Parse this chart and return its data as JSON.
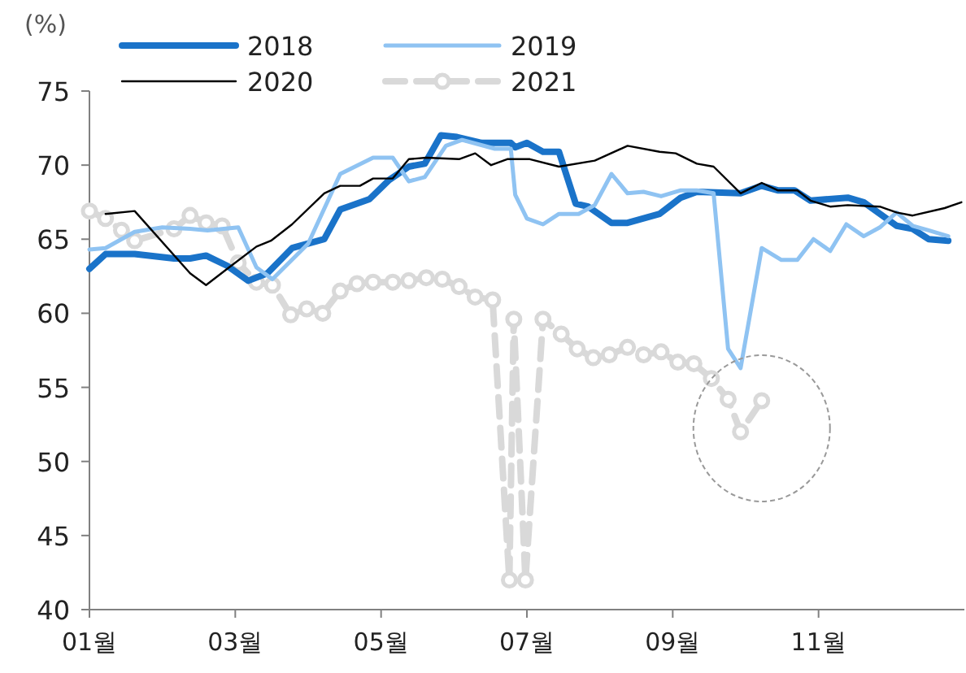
{
  "chart_data": {
    "type": "line",
    "ylabel": "(%)",
    "xlim": [
      1,
      13
    ],
    "ylim": [
      40,
      75
    ],
    "yticks": [
      40,
      45,
      50,
      55,
      60,
      65,
      70,
      75
    ],
    "xticks": [
      {
        "value": 1,
        "label": "01월"
      },
      {
        "value": 3,
        "label": "03월"
      },
      {
        "value": 5,
        "label": "05월"
      },
      {
        "value": 7,
        "label": "07월"
      },
      {
        "value": 9,
        "label": "09월"
      },
      {
        "value": 11,
        "label": "11월"
      }
    ],
    "grid": false,
    "legend": "top",
    "series": [
      {
        "name": "2018",
        "color": "#1a73c9",
        "line_style": "solid",
        "marker": "none",
        "x": [
          1,
          1.22,
          1.62,
          2.16,
          2.38,
          2.6,
          2.89,
          3.18,
          3.44,
          3.78,
          4.22,
          4.44,
          4.84,
          5.11,
          5.38,
          5.6,
          5.82,
          6.04,
          6.38,
          6.78,
          6.84,
          7.0,
          7.22,
          7.44,
          7.67,
          7.84,
          8.16,
          8.38,
          8.82,
          9.11,
          9.33,
          9.93,
          10.22,
          10.44,
          10.67,
          10.89,
          11.4,
          11.62,
          12.07,
          12.29,
          12.51,
          12.78
        ],
        "values": [
          63.0,
          64.0,
          64.0,
          63.7,
          63.7,
          63.9,
          63.2,
          62.2,
          62.7,
          64.4,
          65.0,
          67.0,
          67.7,
          69.0,
          69.9,
          70.1,
          72.0,
          71.9,
          71.5,
          71.5,
          71.2,
          71.5,
          70.9,
          70.9,
          67.4,
          67.2,
          66.1,
          66.1,
          66.7,
          67.8,
          68.2,
          68.1,
          68.6,
          68.3,
          68.3,
          67.6,
          67.8,
          67.5,
          65.9,
          65.7,
          65.0,
          64.9
        ]
      },
      {
        "name": "2019",
        "color": "#8fc3f2",
        "line_style": "solid",
        "marker": "none",
        "x": [
          1,
          1.22,
          1.62,
          2.0,
          2.38,
          2.62,
          3.04,
          3.29,
          3.51,
          4.0,
          4.44,
          4.89,
          5.16,
          5.38,
          5.6,
          5.89,
          6.11,
          6.56,
          6.78,
          6.84,
          7.0,
          7.22,
          7.44,
          7.71,
          7.93,
          8.16,
          8.38,
          8.6,
          8.84,
          9.11,
          9.33,
          9.56,
          9.76,
          9.93,
          10.22,
          10.49,
          10.71,
          10.93,
          11.16,
          11.38,
          11.62,
          11.84,
          12.07,
          12.29,
          12.51,
          12.78
        ],
        "values": [
          64.3,
          64.4,
          65.5,
          65.8,
          65.7,
          65.6,
          65.8,
          63.1,
          62.3,
          64.7,
          69.4,
          70.5,
          70.5,
          68.9,
          69.2,
          71.3,
          71.7,
          71.1,
          71.1,
          68.0,
          66.4,
          66.0,
          66.7,
          66.7,
          67.3,
          69.4,
          68.1,
          68.2,
          67.9,
          68.3,
          68.3,
          68.1,
          57.6,
          56.3,
          64.4,
          63.6,
          63.6,
          65.0,
          64.2,
          66.0,
          65.2,
          65.8,
          66.8,
          65.9,
          65.6,
          65.2
        ]
      },
      {
        "name": "2020",
        "color": "#000000",
        "line_style": "solid",
        "marker": "none",
        "x": [
          1.22,
          1.62,
          2.38,
          2.6,
          2.89,
          3.29,
          3.49,
          3.78,
          4.22,
          4.44,
          4.71,
          4.89,
          5.16,
          5.38,
          5.62,
          6.07,
          6.29,
          6.51,
          6.73,
          7.04,
          7.44,
          7.93,
          8.38,
          8.82,
          9.04,
          9.33,
          9.56,
          9.93,
          10.22,
          10.44,
          10.71,
          10.89,
          11.16,
          11.4,
          11.84,
          12.07,
          12.29,
          12.73,
          12.96
        ],
        "values": [
          66.7,
          66.9,
          62.7,
          61.9,
          63.0,
          64.5,
          64.9,
          66.0,
          68.1,
          68.6,
          68.6,
          69.1,
          69.1,
          70.4,
          70.5,
          70.4,
          70.8,
          70.0,
          70.4,
          70.4,
          69.9,
          70.3,
          71.3,
          70.9,
          70.8,
          70.1,
          69.9,
          68.1,
          68.8,
          68.3,
          68.3,
          67.6,
          67.2,
          67.3,
          67.2,
          66.8,
          66.6,
          67.1,
          67.5
        ]
      },
      {
        "name": "2021",
        "color": "#d9d9d9",
        "line_style": "dashed",
        "marker": "circle",
        "x": [
          1,
          1.22,
          1.44,
          1.62,
          2.16,
          2.38,
          2.6,
          2.82,
          3.04,
          3.29,
          3.51,
          3.76,
          3.98,
          4.2,
          4.44,
          4.67,
          4.89,
          5.16,
          5.38,
          5.62,
          5.84,
          6.07,
          6.29,
          6.53,
          6.76,
          6.82,
          6.98,
          7.22,
          7.47,
          7.69,
          7.91,
          8.13,
          8.38,
          8.6,
          8.84,
          9.07,
          9.29,
          9.53,
          9.76,
          9.93,
          10.22
        ],
        "values": [
          66.9,
          66.4,
          65.6,
          64.9,
          65.7,
          66.6,
          66.1,
          65.9,
          63.4,
          62.1,
          61.9,
          59.9,
          60.3,
          60.0,
          61.5,
          62.0,
          62.1,
          62.1,
          62.2,
          62.4,
          62.3,
          61.8,
          61.1,
          60.9,
          42.0,
          59.6,
          42.0,
          59.6,
          58.6,
          57.6,
          57.0,
          57.2,
          57.7,
          57.2,
          57.4,
          56.7,
          56.6,
          55.6,
          54.2,
          52.0,
          54.1
        ]
      }
    ]
  }
}
